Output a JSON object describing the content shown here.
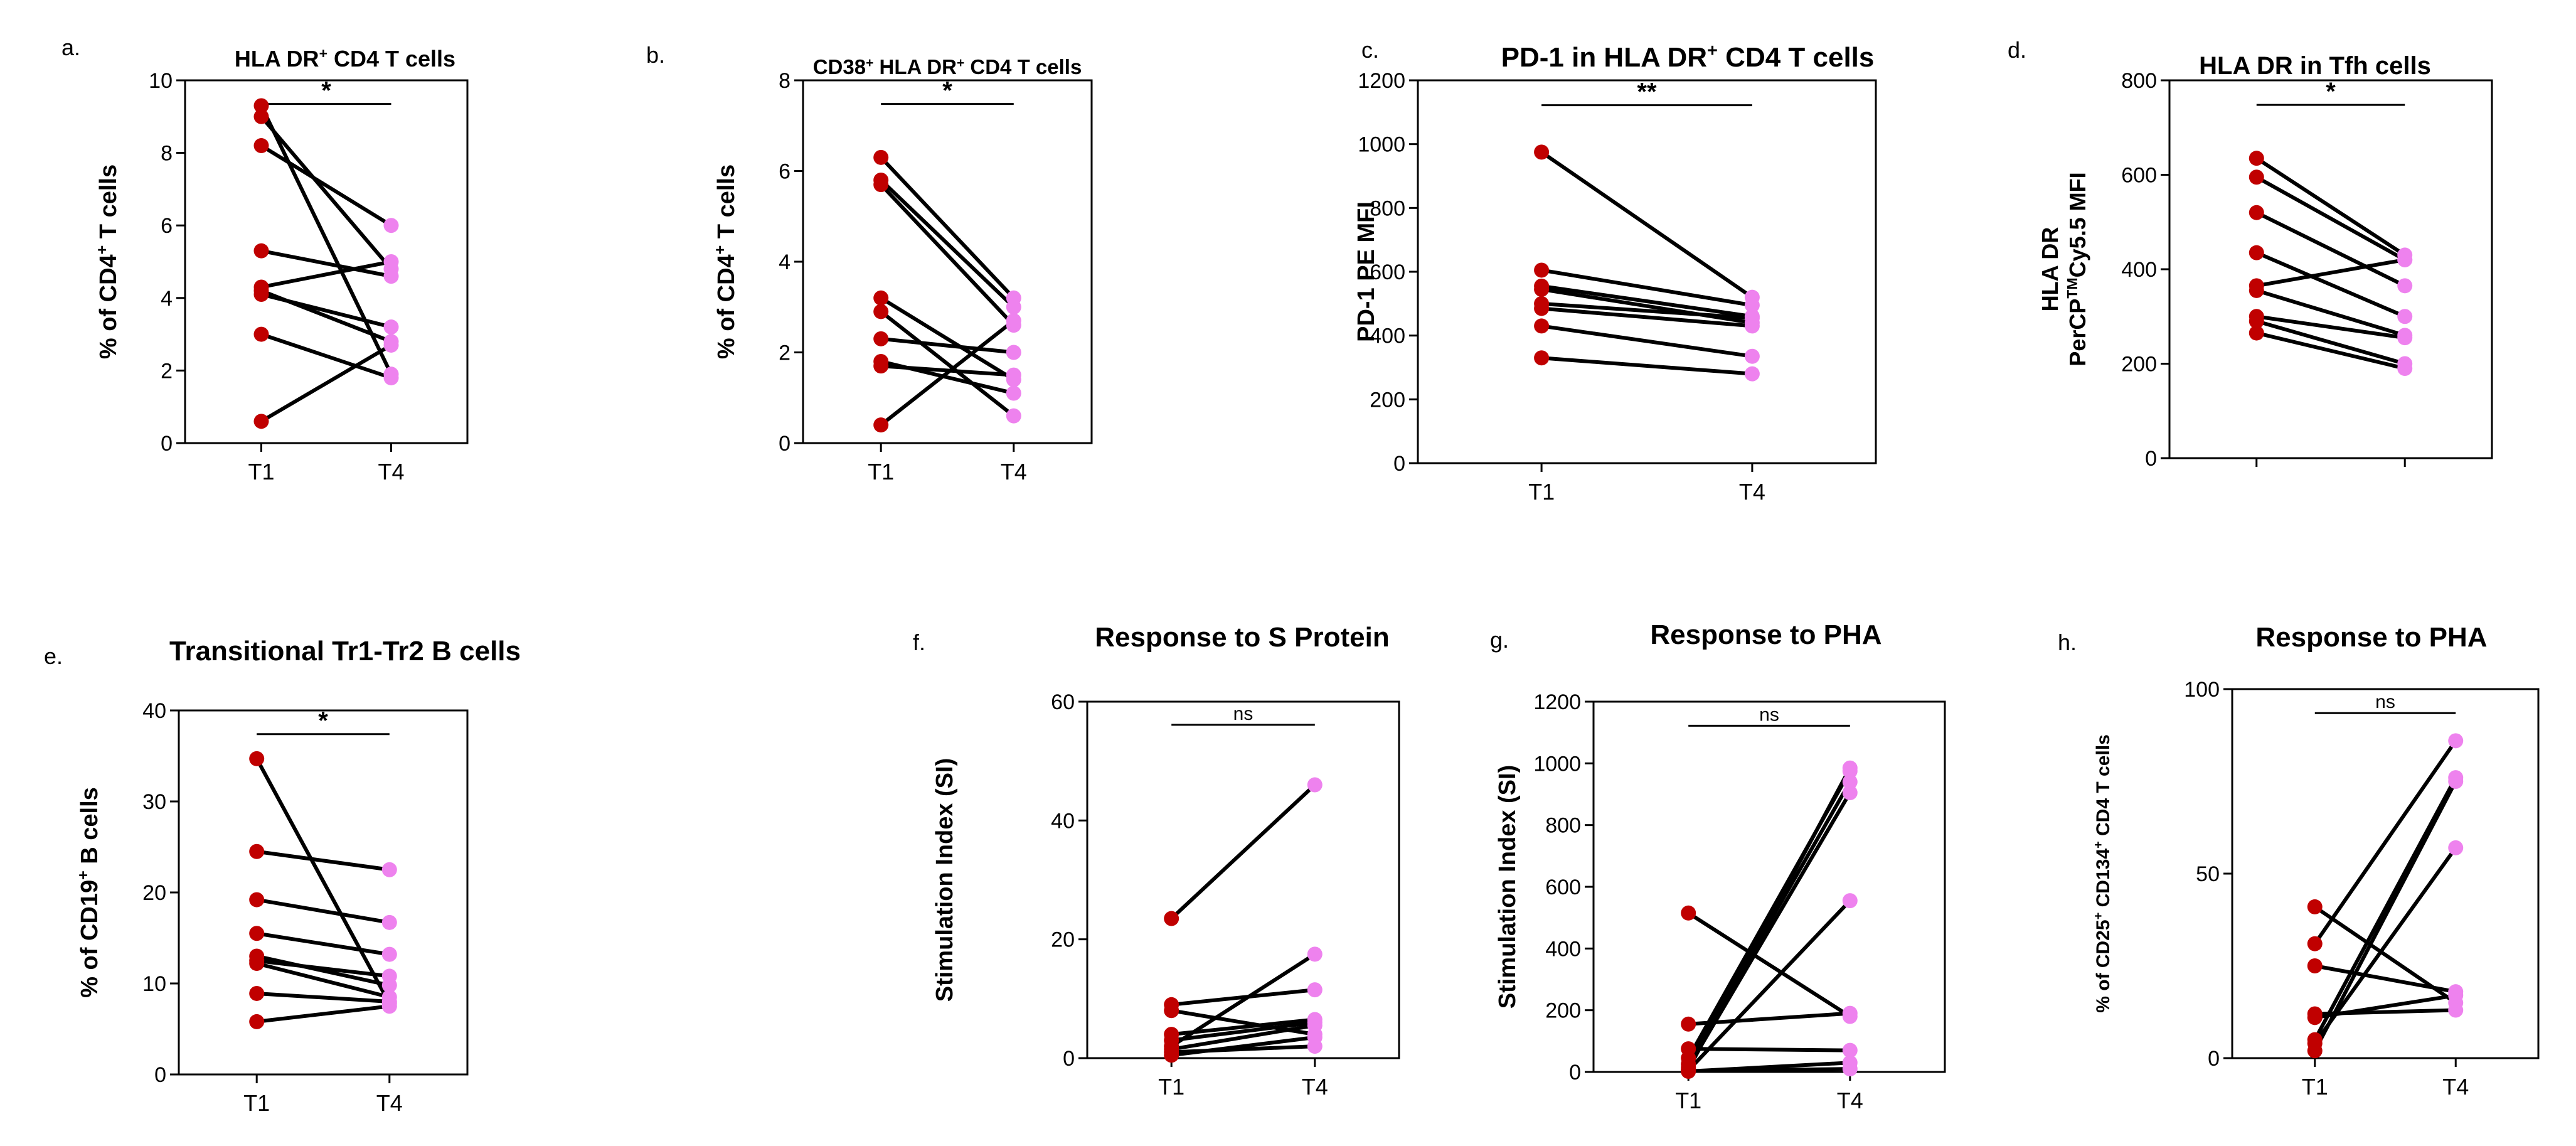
{
  "colors": {
    "t1": "#c00000",
    "t4": "#ee82ee",
    "line": "#000000"
  },
  "chart_data": [
    {
      "type": "line",
      "panel": "a.",
      "title": "HLA DR⁺ CD4 T cells",
      "title_sup": [
        {
          "text": "HLA DR",
          "sup": false
        },
        {
          "text": "+",
          "sup": true
        },
        {
          "text": " CD4 T cells",
          "sup": false
        }
      ],
      "ylabel_parts": [
        {
          "text": "% of CD4",
          "sup": false
        },
        {
          "text": "+",
          "sup": true
        },
        {
          "text": " T cells",
          "sup": false
        }
      ],
      "categories": [
        "T1",
        "T4"
      ],
      "ylim": [
        0,
        10
      ],
      "yticks": [
        0,
        2,
        4,
        6,
        8,
        10
      ],
      "ytick_labels": [
        "0",
        "2",
        "4",
        "6",
        "8",
        "10"
      ],
      "significance": "*",
      "pairs": [
        [
          9.3,
          1.9
        ],
        [
          9.0,
          4.8
        ],
        [
          8.2,
          6.0
        ],
        [
          5.3,
          4.6
        ],
        [
          4.3,
          5.0
        ],
        [
          4.2,
          2.8
        ],
        [
          4.1,
          3.2
        ],
        [
          3.0,
          1.8
        ],
        [
          0.6,
          2.7
        ]
      ]
    },
    {
      "type": "line",
      "panel": "b.",
      "title": "CD38⁺ HLA DR⁺ CD4 T cells",
      "title_sup": [
        {
          "text": "CD38",
          "sup": false
        },
        {
          "text": "+",
          "sup": true
        },
        {
          "text": " HLA DR",
          "sup": false
        },
        {
          "text": "+",
          "sup": true
        },
        {
          "text": " CD4 T cells",
          "sup": false
        }
      ],
      "ylabel_parts": [
        {
          "text": "% of CD4",
          "sup": false
        },
        {
          "text": "+",
          "sup": true
        },
        {
          "text": " T cells",
          "sup": false
        }
      ],
      "categories": [
        "T1",
        "T4"
      ],
      "ylim": [
        0,
        8
      ],
      "yticks": [
        0,
        2,
        4,
        6,
        8
      ],
      "ytick_labels": [
        "0",
        "2",
        "4",
        "6",
        "8"
      ],
      "significance": "*",
      "pairs": [
        [
          6.3,
          3.2
        ],
        [
          5.8,
          3.0
        ],
        [
          5.7,
          2.6
        ],
        [
          3.2,
          1.4
        ],
        [
          2.9,
          0.6
        ],
        [
          2.3,
          2.0
        ],
        [
          1.8,
          1.1
        ],
        [
          1.7,
          1.5
        ],
        [
          0.4,
          2.7
        ]
      ]
    },
    {
      "type": "line",
      "panel": "c.",
      "title": "PD-1 in HLA DR⁺ CD4 T cells",
      "title_sup": [
        {
          "text": "PD-1 in HLA DR",
          "sup": false
        },
        {
          "text": "+",
          "sup": true
        },
        {
          "text": " CD4 T cells",
          "sup": false
        }
      ],
      "ylabel_parts": [
        {
          "text": "PD-1 PE MFI",
          "sup": false
        }
      ],
      "categories": [
        "T1",
        "T4"
      ],
      "ylim": [
        0,
        1200
      ],
      "yticks": [
        0,
        200,
        400,
        600,
        800,
        1000,
        1200
      ],
      "ytick_labels": [
        "0",
        "200",
        "400",
        "600",
        "800",
        "1000",
        "1200"
      ],
      "significance": "**",
      "pairs": [
        [
          975,
          520
        ],
        [
          605,
          495
        ],
        [
          555,
          460
        ],
        [
          545,
          440
        ],
        [
          500,
          455
        ],
        [
          485,
          430
        ],
        [
          430,
          335
        ],
        [
          330,
          280
        ]
      ]
    },
    {
      "type": "line",
      "panel": "d.",
      "title": "HLA DR in Tfh cells",
      "title_sup": [
        {
          "text": "HLA DR in Tfh cells",
          "sup": false
        }
      ],
      "ylabel_line1": "HLA DR",
      "ylabel_parts": [
        {
          "text": "PerCP",
          "sup": false
        },
        {
          "text": "TM",
          "sup": true
        },
        {
          "text": "Cy5.5 MFI",
          "sup": false
        }
      ],
      "categories": [
        "",
        ""
      ],
      "ylim": [
        0,
        800
      ],
      "yticks": [
        0,
        200,
        400,
        600,
        800
      ],
      "ytick_labels": [
        "0",
        "200",
        "400",
        "600",
        "800"
      ],
      "significance": "*",
      "pairs": [
        [
          635,
          430
        ],
        [
          595,
          420
        ],
        [
          520,
          365
        ],
        [
          435,
          300
        ],
        [
          365,
          420
        ],
        [
          355,
          260
        ],
        [
          300,
          255
        ],
        [
          290,
          200
        ],
        [
          265,
          190
        ]
      ]
    },
    {
      "type": "line",
      "panel": "e.",
      "title": "Transitional Tr1-Tr2 B cells",
      "title_sup": [
        {
          "text": "Transitional Tr1-Tr2 B cells",
          "sup": false
        }
      ],
      "ylabel_parts": [
        {
          "text": "% of CD19",
          "sup": false
        },
        {
          "text": "+",
          "sup": true
        },
        {
          "text": " B cells",
          "sup": false
        }
      ],
      "categories": [
        "T1",
        "T4"
      ],
      "ylim": [
        0,
        40
      ],
      "yticks": [
        0,
        10,
        20,
        30,
        40
      ],
      "ytick_labels": [
        "0",
        "10",
        "20",
        "30",
        "40"
      ],
      "significance": "*",
      "pairs": [
        [
          34.7,
          7.8
        ],
        [
          24.5,
          22.5
        ],
        [
          19.2,
          16.7
        ],
        [
          15.5,
          13.2
        ],
        [
          13.0,
          9.8
        ],
        [
          12.5,
          10.8
        ],
        [
          12.2,
          8.5
        ],
        [
          8.9,
          8.0
        ],
        [
          5.8,
          7.5
        ]
      ]
    },
    {
      "type": "line",
      "panel": "f.",
      "title": "Response to S Protein",
      "title_sup": [
        {
          "text": "Response to S Protein",
          "sup": false
        }
      ],
      "ylabel_parts": [
        {
          "text": "Stimulation Index (SI)",
          "sup": false
        }
      ],
      "categories": [
        "T1",
        "T4"
      ],
      "ylim": [
        0,
        60
      ],
      "yticks": [
        0,
        20,
        40,
        60
      ],
      "ytick_labels": [
        "0",
        "20",
        "40",
        "60"
      ],
      "significance": "ns",
      "pairs": [
        [
          23.5,
          46.0
        ],
        [
          9.0,
          11.5
        ],
        [
          8.0,
          4.0
        ],
        [
          4.0,
          6.5
        ],
        [
          3.0,
          6.0
        ],
        [
          2.0,
          17.5
        ],
        [
          1.5,
          5.5
        ],
        [
          1.0,
          2.0
        ],
        [
          0.5,
          3.5
        ]
      ]
    },
    {
      "type": "line",
      "panel": "g.",
      "title": "Response to PHA",
      "title_sup": [
        {
          "text": "Response to PHA",
          "sup": false
        }
      ],
      "ylabel_parts": [
        {
          "text": "Stimulation Index (SI)",
          "sup": false
        }
      ],
      "categories": [
        "T1",
        "T4"
      ],
      "ylim": [
        0,
        1200
      ],
      "yticks": [
        0,
        200,
        400,
        600,
        800,
        1000,
        1200
      ],
      "ytick_labels": [
        "0",
        "200",
        "400",
        "600",
        "800",
        "1000",
        "1200"
      ],
      "significance": "ns",
      "pairs": [
        [
          515,
          180
        ],
        [
          155,
          190
        ],
        [
          75,
          70
        ],
        [
          45,
          975
        ],
        [
          25,
          940
        ],
        [
          15,
          905
        ],
        [
          8,
          985
        ],
        [
          5,
          555
        ],
        [
          3,
          10
        ],
        [
          2,
          30
        ]
      ]
    },
    {
      "type": "line",
      "panel": "h.",
      "title": "Response to PHA",
      "title_sup": [
        {
          "text": "Response to PHA",
          "sup": false
        }
      ],
      "ylabel_parts": [
        {
          "text": "% of CD25",
          "sup": false
        },
        {
          "text": "+",
          "sup": true
        },
        {
          "text": " CD134",
          "sup": false
        },
        {
          "text": "+",
          "sup": true
        },
        {
          "text": " CD4 T cells",
          "sup": false
        }
      ],
      "categories": [
        "T1",
        "T4"
      ],
      "ylim": [
        0,
        100
      ],
      "yticks": [
        0,
        50,
        100
      ],
      "ytick_labels": [
        "0",
        "50",
        "100"
      ],
      "significance": "ns",
      "pairs": [
        [
          41,
          15
        ],
        [
          31,
          86
        ],
        [
          25,
          18
        ],
        [
          12,
          13
        ],
        [
          11,
          17
        ],
        [
          5,
          76
        ],
        [
          4,
          57
        ],
        [
          2,
          75
        ]
      ]
    }
  ]
}
